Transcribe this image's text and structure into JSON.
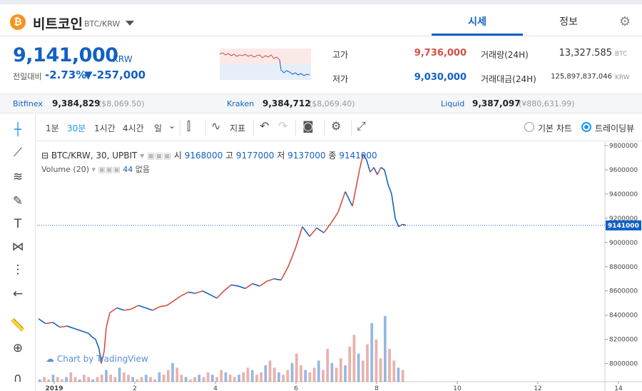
{
  "coin": {
    "name": "비트코인",
    "pair": "BTC/KRW"
  },
  "tabs": [
    {
      "label": "시세"
    },
    {
      "label": "정보"
    }
  ],
  "ticker": {
    "price": "9,141,000",
    "unit": "KRW",
    "change_label": "전일대비",
    "change_pct": "-2.73%",
    "change_abs": "▼-257,000"
  },
  "stats": {
    "high_label": "고가",
    "high": "9,736,000",
    "low_label": "저가",
    "low": "9,030,000",
    "volume_label": "거래량(24H)",
    "volume": "13,327.585",
    "volume_unit": "BTC",
    "amount_label": "거래대금(24H)",
    "amount": "125,897,837,046",
    "amount_unit": "KRW"
  },
  "exchanges": [
    {
      "name": "Bitfinex",
      "price": "9,384,829",
      "sub": "($8,069.50)"
    },
    {
      "name": "Kraken",
      "price": "9,384,712",
      "sub": "($8,069.40)"
    },
    {
      "name": "Liquid",
      "price": "9,387,097",
      "sub": "(¥880,631.99)"
    }
  ],
  "toolbar": {
    "intervals": [
      "1분",
      "30분",
      "1시간",
      "4시간",
      "일"
    ],
    "indicator_label": "지표",
    "basic_chart_label": "기본 차트",
    "tradingview_label": "트레이딩뷰"
  },
  "legend": {
    "symbol": "BTC/KRW, 30, UPBIT",
    "open_label": "시",
    "open": "9168000",
    "high_label": "고",
    "high": "9177000",
    "low_label": "저",
    "low": "9137000",
    "close_label": "종",
    "close": "9141000",
    "volume_title": "Volume (20)",
    "volume_value": "44",
    "volume_extra": "없음"
  },
  "watermark": "Chart by TradingView",
  "colors": {
    "up": "#d24f45",
    "down": "#1261c4",
    "accent": "#1f96f3"
  },
  "chart_data": {
    "type": "line",
    "ylim": [
      7850000,
      9830000
    ],
    "yticks": [
      "9800000",
      "9600000",
      "9400000",
      "9200000",
      "9000000",
      "8800000",
      "8600000",
      "8400000",
      "8200000",
      "8000000"
    ],
    "xtick_labels": [
      "2019",
      "2",
      "4",
      "6",
      "8",
      "10",
      "12",
      "14"
    ],
    "last_price": "9141000",
    "price_path": [
      [
        0,
        8370000
      ],
      [
        10,
        8330000
      ],
      [
        20,
        8340000
      ],
      [
        30,
        8300000
      ],
      [
        40,
        8310000
      ],
      [
        50,
        8290000
      ],
      [
        60,
        8270000
      ],
      [
        70,
        8250000
      ],
      [
        75,
        8220000
      ],
      [
        80,
        8200000
      ],
      [
        85,
        8120000
      ],
      [
        88,
        8000000
      ],
      [
        92,
        8100000
      ],
      [
        95,
        8300000
      ],
      [
        100,
        8420000
      ],
      [
        110,
        8460000
      ],
      [
        120,
        8440000
      ],
      [
        130,
        8450000
      ],
      [
        140,
        8480000
      ],
      [
        150,
        8460000
      ],
      [
        160,
        8440000
      ],
      [
        170,
        8470000
      ],
      [
        180,
        8480000
      ],
      [
        190,
        8520000
      ],
      [
        200,
        8560000
      ],
      [
        210,
        8590000
      ],
      [
        220,
        8580000
      ],
      [
        230,
        8600000
      ],
      [
        240,
        8570000
      ],
      [
        250,
        8540000
      ],
      [
        260,
        8600000
      ],
      [
        270,
        8650000
      ],
      [
        280,
        8640000
      ],
      [
        290,
        8620000
      ],
      [
        300,
        8660000
      ],
      [
        310,
        8640000
      ],
      [
        320,
        8680000
      ],
      [
        330,
        8700000
      ],
      [
        340,
        8690000
      ],
      [
        350,
        8800000
      ],
      [
        360,
        8950000
      ],
      [
        370,
        9130000
      ],
      [
        380,
        9050000
      ],
      [
        390,
        9120000
      ],
      [
        400,
        9080000
      ],
      [
        410,
        9160000
      ],
      [
        420,
        9250000
      ],
      [
        430,
        9420000
      ],
      [
        440,
        9300000
      ],
      [
        445,
        9450000
      ],
      [
        450,
        9600000
      ],
      [
        455,
        9730000
      ],
      [
        460,
        9680000
      ],
      [
        465,
        9580000
      ],
      [
        470,
        9620000
      ],
      [
        475,
        9560000
      ],
      [
        480,
        9620000
      ],
      [
        485,
        9600000
      ],
      [
        490,
        9480000
      ],
      [
        495,
        9400000
      ],
      [
        500,
        9200000
      ],
      [
        505,
        9130000
      ],
      [
        510,
        9150000
      ],
      [
        515,
        9141000
      ]
    ],
    "volume": [
      1,
      2,
      1,
      3,
      2,
      1,
      2,
      4,
      2,
      1,
      3,
      2,
      1,
      2,
      3,
      5,
      3,
      2,
      6,
      4,
      3,
      2,
      1,
      2,
      3,
      2,
      1,
      4,
      3,
      5,
      8,
      6,
      3,
      2,
      1,
      2,
      3,
      2,
      4,
      3,
      2,
      5,
      4,
      3,
      2,
      3,
      4,
      6,
      5,
      3,
      4,
      7,
      9,
      6,
      4,
      3,
      5,
      8,
      12,
      7,
      5,
      4,
      6,
      9,
      5,
      14,
      8,
      6,
      10,
      7,
      15,
      20,
      12,
      9,
      16,
      25,
      18,
      10,
      28,
      14,
      9,
      6,
      5
    ]
  }
}
